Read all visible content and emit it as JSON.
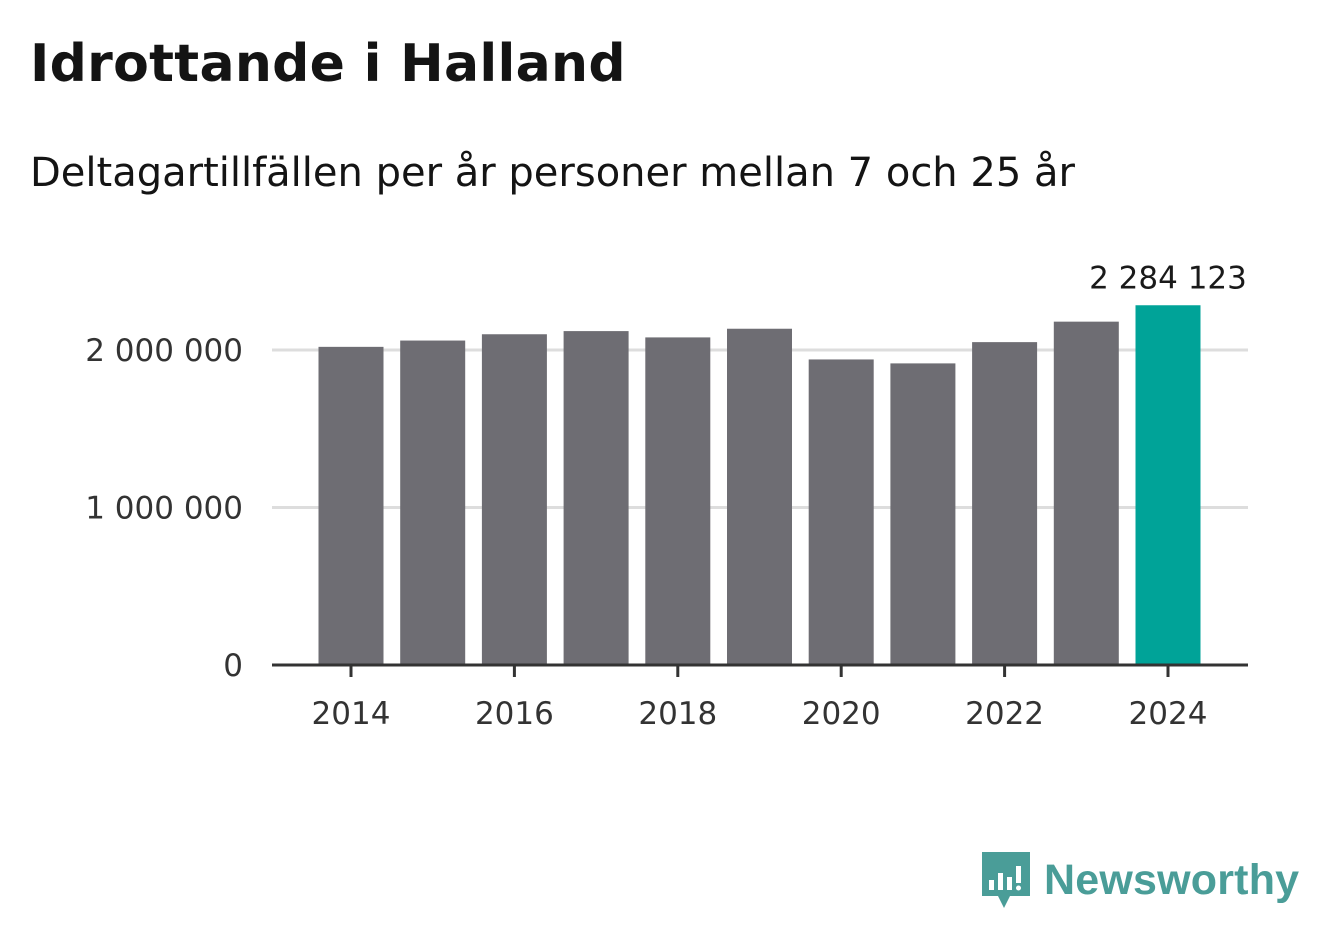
{
  "header": {
    "title": "Idrottande i Halland",
    "subtitle": "Deltagartillfällen per år personer mellan 7 och 25 år"
  },
  "branding": {
    "logo_text": "Newsworthy"
  },
  "colors": {
    "bar": "#6e6d73",
    "highlight": "#00a398",
    "grid": "#dddddd",
    "axis": "#333333",
    "logo": "#4a9d98"
  },
  "chart_data": {
    "type": "bar",
    "title": "Idrottande i Halland",
    "subtitle": "Deltagartillfällen per år personer mellan 7 och 25 år",
    "xlabel": "",
    "ylabel": "",
    "categories": [
      "2014",
      "2015",
      "2016",
      "2017",
      "2018",
      "2019",
      "2020",
      "2021",
      "2022",
      "2023",
      "2024"
    ],
    "values": [
      2020000,
      2060000,
      2100000,
      2120000,
      2080000,
      2135000,
      1940000,
      1915000,
      2050000,
      2180000,
      2284123
    ],
    "highlight_index": 10,
    "highlight_label": "2 284 123",
    "ylim": [
      0,
      2400000
    ],
    "yticks": [
      0,
      1000000,
      2000000
    ],
    "ytick_labels": [
      "0",
      "1 000 000",
      "2 000 000"
    ],
    "xticks": [
      "2014",
      "2016",
      "2018",
      "2020",
      "2022",
      "2024"
    ],
    "grid": true
  }
}
